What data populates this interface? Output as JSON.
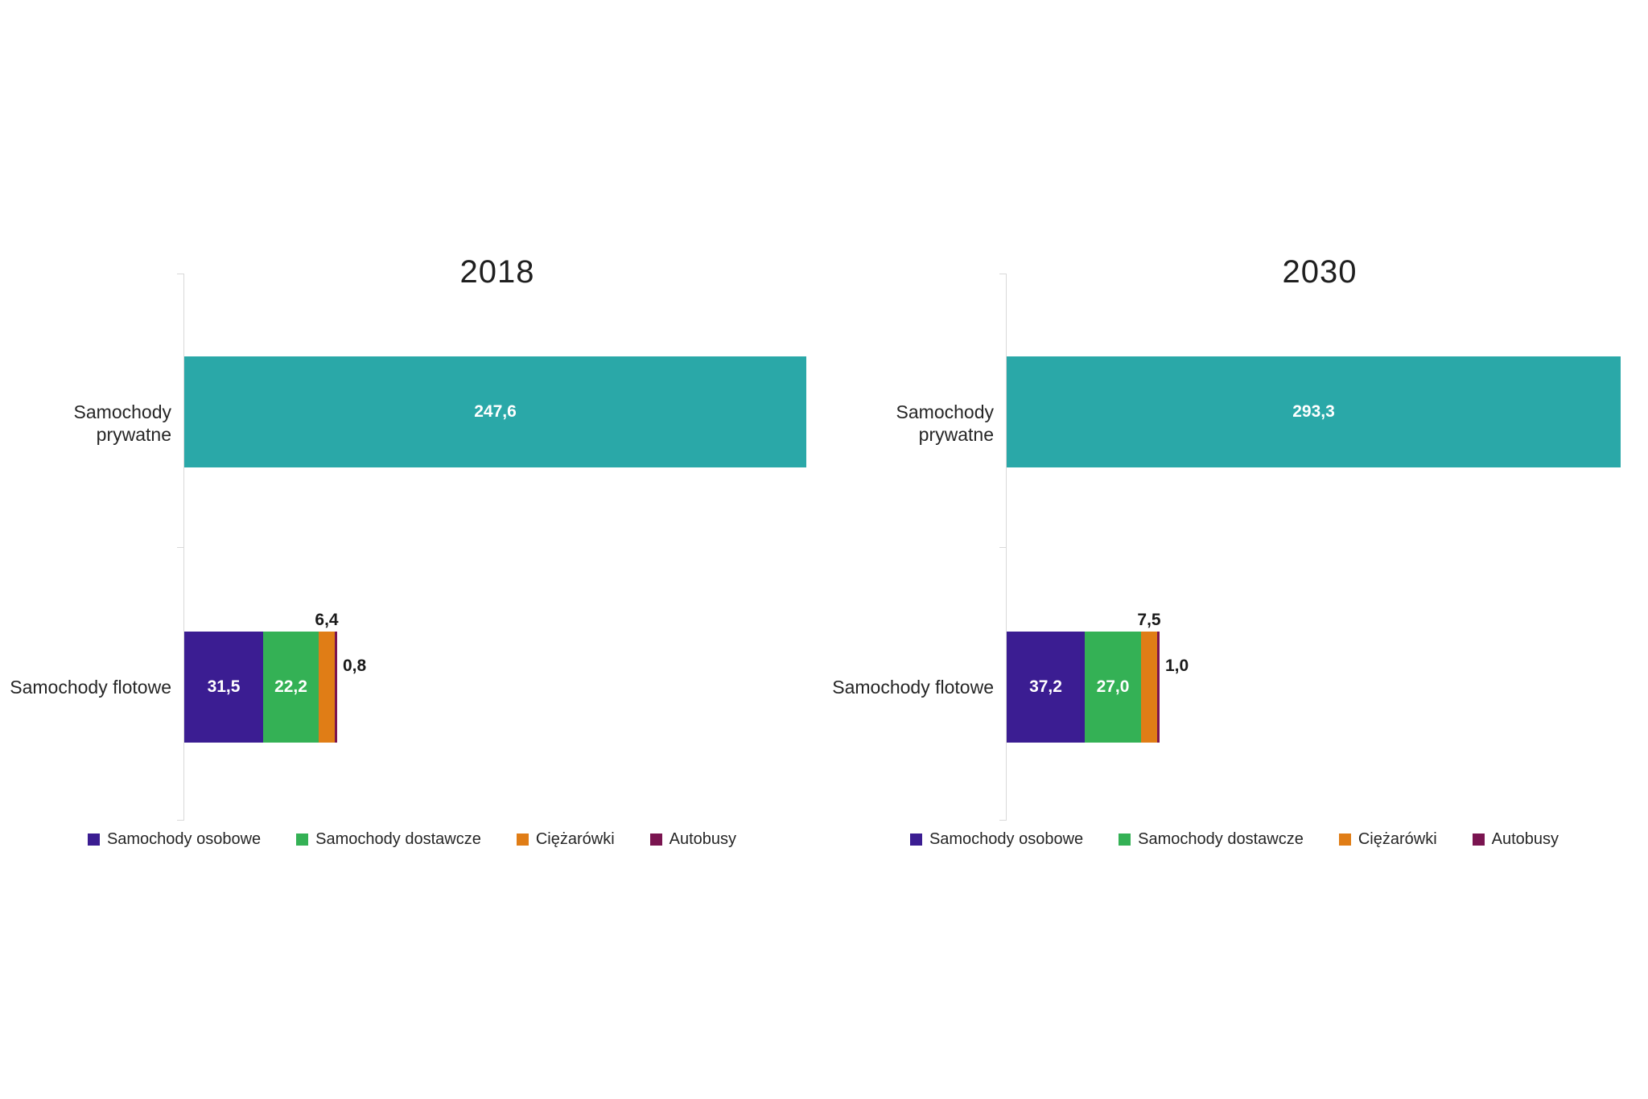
{
  "page": {
    "background": "#ffffff"
  },
  "colors": {
    "teal": "#2AA8A8",
    "purple": "#3B1D92",
    "green": "#34B155",
    "orange": "#E07D16",
    "maroon": "#7A1450",
    "axis_line": "#D9D9D9",
    "text": "#262626",
    "value_inside": "#FFFFFF",
    "value_outside": "#1A1A1A"
  },
  "legend": {
    "items": [
      {
        "label": "Samochody osobowe",
        "color_key": "purple"
      },
      {
        "label": "Samochody dostawcze",
        "color_key": "green"
      },
      {
        "label": "Ciężarówki",
        "color_key": "orange"
      },
      {
        "label": "Autobusy",
        "color_key": "maroon"
      }
    ]
  },
  "chart_data": [
    {
      "type": "bar",
      "orientation": "horizontal",
      "stacked": true,
      "title": "2018",
      "xlim": [
        0,
        250
      ],
      "grid": false,
      "legend_position": "bottom",
      "categories": [
        "Samochody prywatne",
        "Samochody flotowe"
      ],
      "rows": [
        {
          "category": "Samochody prywatne",
          "segments": [
            {
              "series": "Samochody prywatne",
              "value": 247.6,
              "label": "247,6",
              "color_key": "teal",
              "label_pos": "inside"
            }
          ]
        },
        {
          "category": "Samochody flotowe",
          "segments": [
            {
              "series": "Samochody osobowe",
              "value": 31.5,
              "label": "31,5",
              "color_key": "purple",
              "label_pos": "inside"
            },
            {
              "series": "Samochody dostawcze",
              "value": 22.2,
              "label": "22,2",
              "color_key": "green",
              "label_pos": "inside"
            },
            {
              "series": "Ciężarówki",
              "value": 6.4,
              "label": "6,4",
              "color_key": "orange",
              "label_pos": "above"
            },
            {
              "series": "Autobusy",
              "value": 0.8,
              "label": "0,8",
              "color_key": "maroon",
              "label_pos": "right"
            }
          ]
        }
      ]
    },
    {
      "type": "bar",
      "orientation": "horizontal",
      "stacked": true,
      "title": "2030",
      "xlim": [
        0,
        300
      ],
      "grid": false,
      "legend_position": "bottom",
      "categories": [
        "Samochody prywatne",
        "Samochody flotowe"
      ],
      "rows": [
        {
          "category": "Samochody prywatne",
          "segments": [
            {
              "series": "Samochody prywatne",
              "value": 293.3,
              "label": "293,3",
              "color_key": "teal",
              "label_pos": "inside"
            }
          ]
        },
        {
          "category": "Samochody flotowe",
          "segments": [
            {
              "series": "Samochody osobowe",
              "value": 37.2,
              "label": "37,2",
              "color_key": "purple",
              "label_pos": "inside"
            },
            {
              "series": "Samochody dostawcze",
              "value": 27.0,
              "label": "27,0",
              "color_key": "green",
              "label_pos": "inside"
            },
            {
              "series": "Ciężarówki",
              "value": 7.5,
              "label": "7,5",
              "color_key": "orange",
              "label_pos": "above"
            },
            {
              "series": "Autobusy",
              "value": 1.0,
              "label": "1,0",
              "color_key": "maroon",
              "label_pos": "right"
            }
          ]
        }
      ]
    }
  ]
}
